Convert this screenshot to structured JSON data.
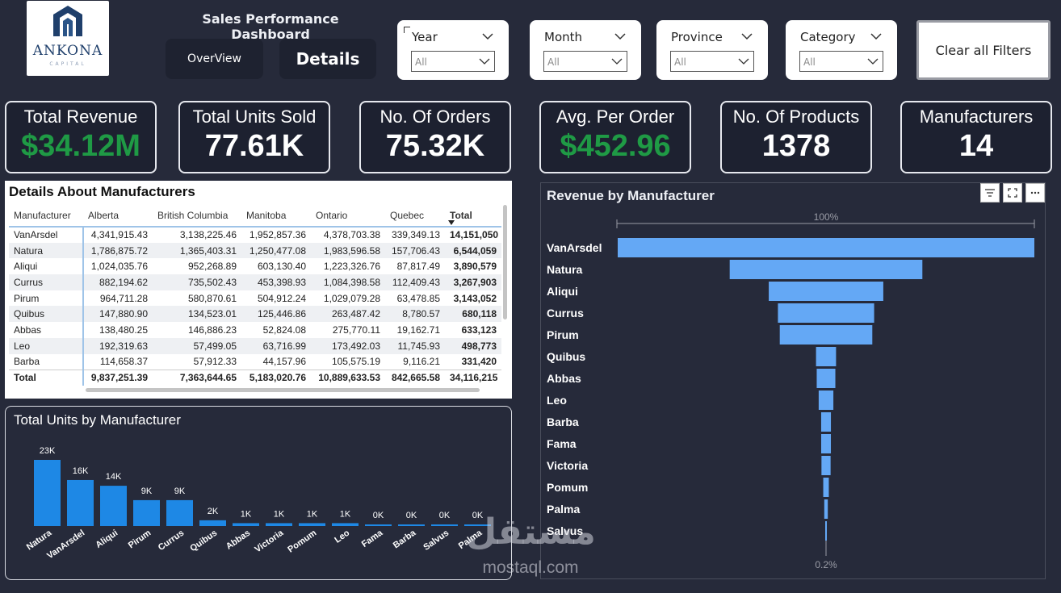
{
  "logo": {
    "brand": "ANKONA",
    "sub": "CAPITAL"
  },
  "header": {
    "title": "Sales Performance Dashboard"
  },
  "nav": {
    "overview": "OverView",
    "details": "Details"
  },
  "slicers": [
    {
      "title": "Year",
      "value": "All"
    },
    {
      "title": "Month",
      "value": "All"
    },
    {
      "title": "Province",
      "value": "All"
    },
    {
      "title": "Category",
      "value": "All"
    }
  ],
  "clear_filters": "Clear all Filters",
  "kpis": [
    {
      "label": "Total Revenue",
      "value": "$34.12M"
    },
    {
      "label": "Total Units Sold",
      "value": "77.61K"
    },
    {
      "label": "No. Of Orders",
      "value": "75.32K"
    },
    {
      "label": "Avg. Per Order",
      "value": "$452.96"
    },
    {
      "label": "No. Of Products",
      "value": "1378"
    },
    {
      "label": "Manufacturers",
      "value": "14"
    }
  ],
  "colors": {
    "accent_green": "#1f9a45",
    "bar_blue": "#1e88e5",
    "funnel_blue": "#64a8f5",
    "bg": "#262a3a"
  },
  "table": {
    "title": "Details About Manufacturers",
    "headers": [
      "Manufacturer",
      "Alberta",
      "British Columbia",
      "Manitoba",
      "Ontario",
      "Quebec",
      "Total"
    ],
    "rows": [
      [
        "VanArsdel",
        "4,341,915.43",
        "3,138,225.46",
        "1,952,857.36",
        "4,378,703.38",
        "339,349.13",
        "14,151,050"
      ],
      [
        "Natura",
        "1,786,875.72",
        "1,365,403.31",
        "1,250,477.08",
        "1,983,596.58",
        "157,706.43",
        "6,544,059"
      ],
      [
        "Aliqui",
        "1,024,035.76",
        "952,268.89",
        "603,130.40",
        "1,223,326.76",
        "87,817.49",
        "3,890,579"
      ],
      [
        "Currus",
        "882,194.62",
        "735,502.43",
        "453,398.93",
        "1,084,398.58",
        "112,409.43",
        "3,267,903"
      ],
      [
        "Pirum",
        "964,711.28",
        "580,870.61",
        "504,912.24",
        "1,029,079.28",
        "63,478.85",
        "3,143,052"
      ],
      [
        "Quibus",
        "147,880.90",
        "134,523.01",
        "125,446.86",
        "263,487.42",
        "8,780.57",
        "680,118"
      ],
      [
        "Abbas",
        "138,480.25",
        "146,886.23",
        "52,824.08",
        "275,770.11",
        "19,162.71",
        "633,123"
      ],
      [
        "Leo",
        "192,319.63",
        "57,499.05",
        "63,716.99",
        "173,492.03",
        "11,745.93",
        "498,773"
      ],
      [
        "Barba",
        "114,658.37",
        "57,912.33",
        "44,157.96",
        "105,575.19",
        "9,116.21",
        "331,420"
      ]
    ],
    "total": [
      "Total",
      "9,837,251.39",
      "7,363,644.65",
      "5,183,020.76",
      "10,889,633.53",
      "842,665.58",
      "34,116,215"
    ]
  },
  "chart_data": [
    {
      "type": "bar",
      "title": "Total Units by Manufacturer",
      "categories": [
        "Natura",
        "VanArsdel",
        "Aliqui",
        "Pirum",
        "Currus",
        "Quibus",
        "Abbas",
        "Victoria",
        "Pomum",
        "Leo",
        "Fama",
        "Barba",
        "Salvus",
        "Palma"
      ],
      "values": [
        23000,
        16000,
        14000,
        9000,
        9000,
        2000,
        1000,
        1000,
        1000,
        1000,
        400,
        300,
        200,
        100
      ],
      "labels": [
        "23K",
        "16K",
        "14K",
        "9K",
        "9K",
        "2K",
        "1K",
        "1K",
        "1K",
        "1K",
        "0K",
        "0K",
        "0K",
        "0K"
      ],
      "ylim": [
        0,
        23000
      ]
    },
    {
      "type": "bar",
      "subtype": "funnel",
      "title": "Revenue by Manufacturer",
      "categories": [
        "VanArsdel",
        "Natura",
        "Aliqui",
        "Currus",
        "Pirum",
        "Quibus",
        "Abbas",
        "Leo",
        "Barba",
        "Fama",
        "Victoria",
        "Pomum",
        "Palma",
        "Salvus"
      ],
      "values": [
        14151050,
        6544059,
        3890579,
        3267903,
        3143052,
        680118,
        633123,
        498773,
        331420,
        330000,
        310000,
        190000,
        120000,
        30000
      ],
      "top_label": "100%",
      "bottom_label": "0.2%"
    }
  ],
  "watermark": {
    "arabic": "مستقل",
    "latin": "mostaql.com"
  }
}
